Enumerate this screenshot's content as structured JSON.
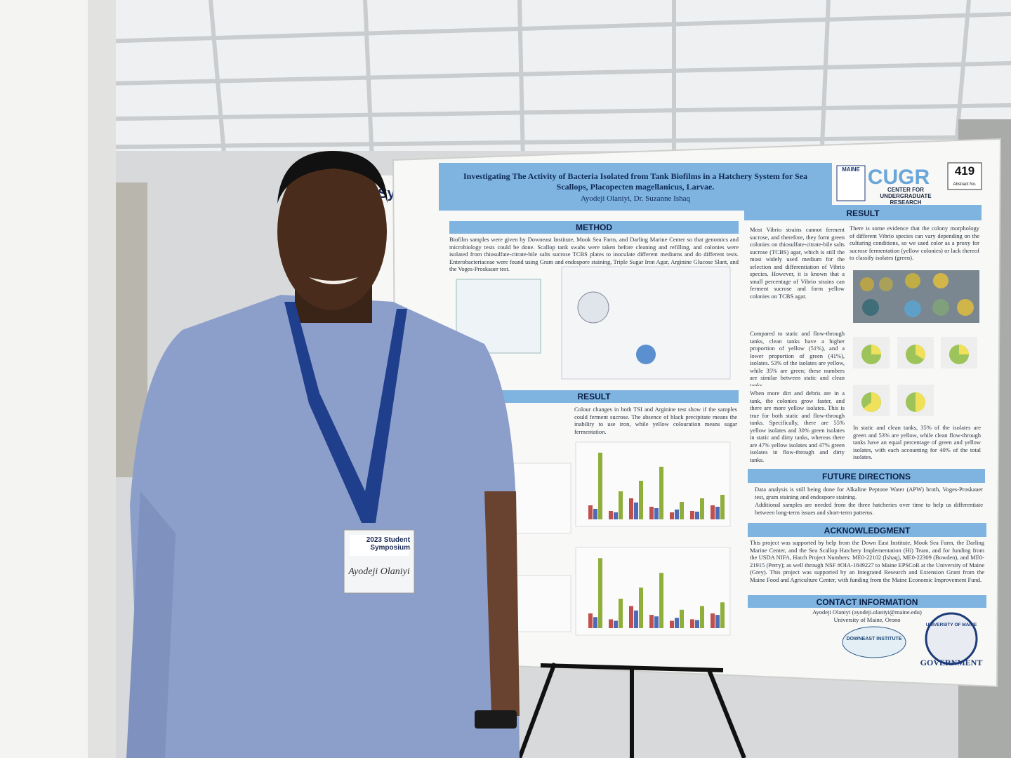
{
  "poster": {
    "title": "Investigating The Activity of Bacteria Isolated from Tank Biofilms in a Hatchery System for Sea Scallops, Placopecten magellanicus, Larvae.",
    "authors": "Ayodeji Olaniyi, Dr. Suzanne Ishaq",
    "abstract_number": "419",
    "abstract_label": "Abstract No.",
    "logo_acronym": "CUGR",
    "logo_name": "CENTER FOR UNDERGRADUATE RESEARCH",
    "logo_maine": "MAINE",
    "sections": {
      "method": "METHOD",
      "result_left": "RESULT",
      "result_right": "RESULT",
      "future": "FUTURE DIRECTIONS",
      "acknowledgment": "ACKNOWLEDGMENT",
      "contact": "CONTACT INFORMATION"
    },
    "method_text": "Biofilm samples were given by Downeast Institute, Mook Sea Farm, and Darling Marine Center so that genomics and microbiology tests could be done. Scallop tank swabs were taken before cleaning and refilling, and colonies were isolated from thiosulfate-citrate-bile salts sucrose TCBS plates to inoculate different mediums and do different tests. Enterobacteriaceae were found using Gram and endospore staining, Triple Sugar Iron Agar, Arginine Glucose Slant, and the Voges-Proskauer test.",
    "result_text": "Colour changes in both TSI and Arginine test show if the samples could ferment sucrose. The absence of black precipitate means the inability to use iron, while yellow colouration means sugar fermentation.",
    "result_right_bullets": [
      "Most Vibrio strains cannot ferment sucrose, and therefore, they form green colonies on thiosulfate-citrate-bile salts sucrose (TCBS) agar, which is still the most widely used medium for the selection and differentiation of Vibrio species. However, it is known that a small percentage of Vibrio strains can ferment sucrose and form yellow colonies on TCBS agar.",
      "Compared to static and flow-through tanks, clean tanks have a higher proportion of yellow (51%), and a lower proportion of green (41%), isolates. 53% of the isolates are yellow, while 35% are green; these numbers are similar between static and clean tanks.",
      "When more dirt and debris are in a tank, the colonies grow faster, and there are more yellow isolates. This is true for both static and flow-through tanks. Specifically, there are 55% yellow isolates and 30% green isolates in static and dirty tanks, whereas there are 47% yellow isolates and 47% green isolates in flow-through and dirty tanks."
    ],
    "colony_text": "There is some evidence that the colony morphology of different Vibrio species can vary depending on the culturing conditions, so we used color as a proxy for sucrose fermentation (yellow colonies) or lack thereof to classify isolates (green).",
    "clean_tank_text": "In static and clean tanks, 35% of the isolates are green and 53% are yellow, while clean flow-through tanks have an equal percentage of green and yellow isolates, with each accounting for 40% of the total isolates.",
    "future_bullets": [
      "Data analysis is still being done for Alkaline Peptone Water (APW) broth, Voges-Proskauer test, gram staining and endospore staining.",
      "Additional samples are needed from the three hatcheries over time to help us differentiate between long-term issues and short-term patterns."
    ],
    "acknowledgment_text": "This project was supported by help from the Down East Institute, Mook Sea Farm, the Darling Marine Center, and the Sea Scallop Hatchery Implementation (Hi) Team, and for funding from the USDA NIFA, Hatch Project Numbers: ME0-22102 (Ishaq), ME0-22309 (Bowden), and ME0-21915 (Perry); as well through NSF #OIA-1849227 to Maine EPSCoR at the University of Maine (Grey). This project was supported by an Integrated Research and Extension Grant from the Maine Food and Agriculture Center, with funding from the Maine Economic Improvement Fund.",
    "contact_lines": [
      "Ayodeji Olaniyi (ayodeji.olaniyi@maine.edu)",
      "University of Maine, Orono"
    ],
    "sponsor_downeast": "DOWNEAST INSTITUTE",
    "sponsor_umaine": "UNIVERSITY OF MAINE",
    "sponsor_gsg": "GOVERNMENT"
  },
  "badge": {
    "event": "2023 Student Symposium",
    "name": "Ayodeji Olaniyi"
  },
  "banner": "Student Symposium"
}
